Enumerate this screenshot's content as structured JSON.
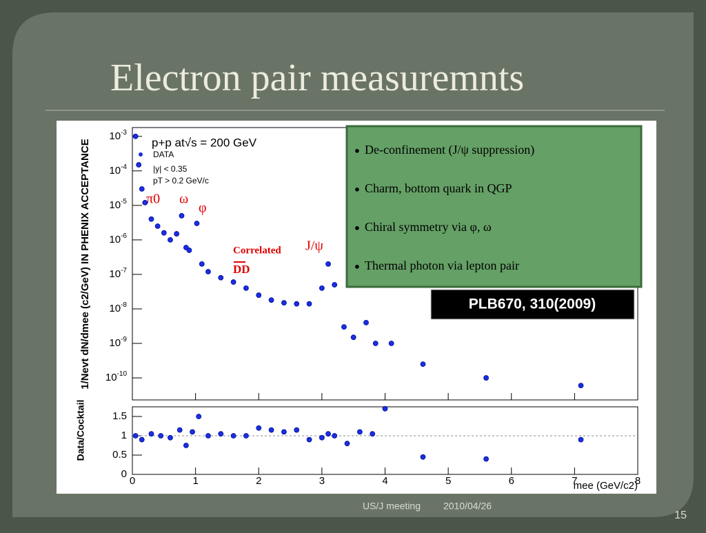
{
  "slide": {
    "title": "Electron pair measuremnts",
    "footer": {
      "event": "US/J meeting",
      "date": "2010/04/26",
      "page": "15"
    }
  },
  "bullets": [
    "De-confinement (J/ψ suppression)",
    "Charm, bottom quark in QGP",
    "Chiral symmetry via φ, ω",
    "Thermal photon via lepton pair"
  ],
  "reference": "PLB670, 310(2009)",
  "chart_data": [
    {
      "type": "scatter",
      "log_y": true,
      "ylabel": "1/Nevt dN/dmee (c2/GeV) IN PHENIX ACCEPTANCE",
      "system": "p+p at√s = 200 GeV",
      "cuts": [
        "|y| < 0.35",
        "pT > 0.2 GeV/c"
      ],
      "annotations": [
        "π0",
        "ω",
        "φ",
        "Correlated",
        "J/ψ",
        "DD"
      ],
      "x": [
        0.05,
        0.1,
        0.15,
        0.2,
        0.3,
        0.4,
        0.5,
        0.6,
        0.7,
        0.78,
        0.85,
        0.9,
        1.02,
        1.1,
        1.2,
        1.4,
        1.6,
        1.8,
        2.0,
        2.2,
        2.4,
        2.6,
        2.8,
        3.0,
        3.1,
        3.2,
        3.35,
        3.5,
        3.7,
        3.85,
        4.1,
        4.6,
        5.6,
        7.1
      ],
      "series": [
        {
          "name": "DATA",
          "color": "#1a2fe0",
          "values": [
            0.001,
            0.00015,
            3e-05,
            1.2e-05,
            4e-06,
            2.5e-06,
            1.6e-06,
            1e-06,
            1.5e-06,
            5e-06,
            6e-07,
            5e-07,
            3e-06,
            2e-07,
            1.2e-07,
            8e-08,
            6e-08,
            4e-08,
            2.5e-08,
            1.8e-08,
            1.5e-08,
            1.4e-08,
            1.4e-08,
            4e-08,
            2e-07,
            5e-08,
            3e-09,
            1.5e-09,
            4e-09,
            1e-09,
            1e-09,
            2.5e-10,
            1e-10,
            6e-11
          ]
        }
      ],
      "xlim": [
        0,
        8
      ],
      "ylim": [
        2.3e-11,
        0.0018
      ],
      "yticks": [
        {
          "value": 0.001,
          "label": "10",
          "exp": "-3"
        },
        {
          "value": 0.0001,
          "label": "10",
          "exp": "-4"
        },
        {
          "value": 1e-05,
          "label": "10",
          "exp": "-5"
        },
        {
          "value": 1e-06,
          "label": "10",
          "exp": "-6"
        },
        {
          "value": 1e-07,
          "label": "10",
          "exp": "-7"
        },
        {
          "value": 1e-08,
          "label": "10",
          "exp": "-8"
        },
        {
          "value": 1e-09,
          "label": "10",
          "exp": "-9"
        },
        {
          "value": 1e-10,
          "label": "10",
          "exp": "-10"
        }
      ]
    },
    {
      "type": "scatter",
      "ylabel": "Data/Cocktail",
      "xlabel": "mee (GeV/c2)",
      "x": [
        0.05,
        0.15,
        0.3,
        0.45,
        0.6,
        0.75,
        0.85,
        0.95,
        1.05,
        1.2,
        1.4,
        1.6,
        1.8,
        2.0,
        2.2,
        2.4,
        2.6,
        2.8,
        3.0,
        3.1,
        3.2,
        3.4,
        3.6,
        3.8,
        4.0,
        4.6,
        5.6,
        7.1
      ],
      "series": [
        {
          "color": "#1a2fe0",
          "values": [
            1.0,
            0.9,
            1.05,
            1.0,
            0.95,
            1.15,
            0.75,
            1.1,
            1.5,
            1.0,
            1.05,
            1.0,
            1.0,
            1.2,
            1.15,
            1.1,
            1.15,
            0.9,
            0.95,
            1.05,
            1.0,
            0.8,
            1.1,
            1.05,
            1.7,
            0.45,
            0.4,
            0.9
          ]
        }
      ],
      "xlim": [
        0,
        8
      ],
      "ylim": [
        0,
        1.75
      ],
      "xticks": [
        0,
        1,
        2,
        3,
        4,
        5,
        6,
        7,
        8
      ],
      "yticks": [
        0,
        0.5,
        1,
        1.5
      ]
    }
  ]
}
